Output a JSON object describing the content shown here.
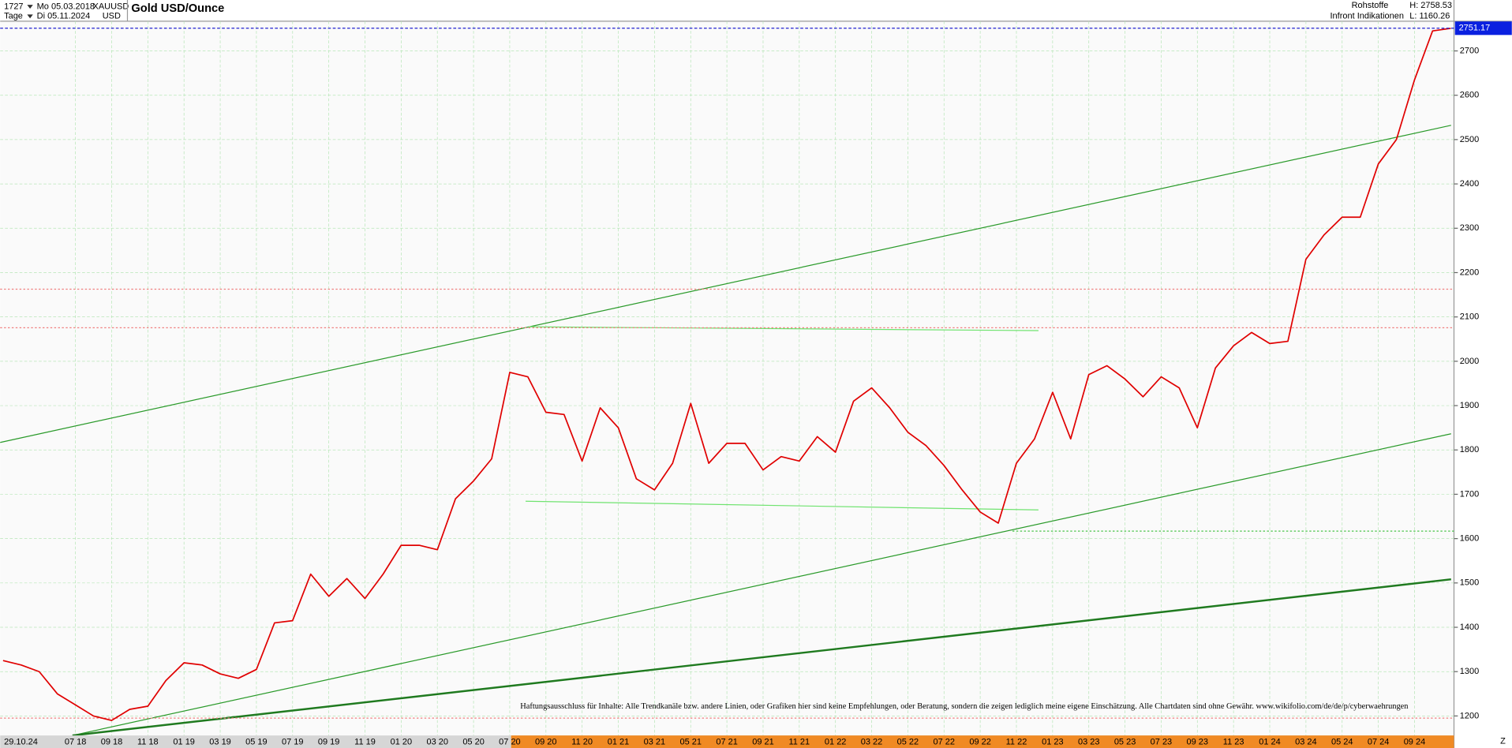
{
  "header": {
    "count": "1727",
    "start": "Mo 05.03.2018",
    "symbol": "XAUUSD",
    "currency": "USD",
    "period": "Tage",
    "end": "Di 05.11.2024",
    "group": "Rohstoffe",
    "high": "H: 2758.53",
    "source": "Infront Indikationen",
    "low": "L: 1160.26"
  },
  "chart_data": {
    "type": "line",
    "title": "Gold USD/Ounce",
    "color": "#e00000",
    "categories": [
      null,
      null,
      null,
      null,
      "07 18",
      null,
      "09 18",
      null,
      "11 18",
      null,
      "01 19",
      null,
      "03 19",
      null,
      "05 19",
      null,
      "07 19",
      null,
      "09 19",
      null,
      "11 19",
      null,
      "01 20",
      null,
      "03 20",
      null,
      "05 20",
      null,
      "07 20",
      null,
      "09 20",
      null,
      "11 20",
      null,
      "01 21",
      null,
      "03 21",
      null,
      "05 21",
      null,
      "07 21",
      null,
      "09 21",
      null,
      "11 21",
      null,
      "01 22",
      null,
      "03 22",
      null,
      "05 22",
      null,
      "07 22",
      null,
      "09 22",
      null,
      "11 22",
      null,
      "01 23",
      null,
      "03 23",
      null,
      "05 23",
      null,
      "07 23",
      null,
      "09 23",
      null,
      "11 23",
      null,
      "01 24",
      null,
      "03 24",
      null,
      "05 24",
      null,
      "07 24",
      null,
      "09 24",
      null,
      null
    ],
    "values": [
      1325,
      1315,
      1300,
      1250,
      1225,
      1200,
      1190,
      1215,
      1222,
      1280,
      1320,
      1315,
      1295,
      1285,
      1305,
      1410,
      1415,
      1520,
      1470,
      1510,
      1465,
      1520,
      1585,
      1585,
      1575,
      1690,
      1730,
      1780,
      1975,
      1965,
      1885,
      1880,
      1775,
      1895,
      1850,
      1735,
      1710,
      1770,
      1905,
      1770,
      1815,
      1815,
      1755,
      1785,
      1775,
      1830,
      1795,
      1910,
      1940,
      1895,
      1840,
      1810,
      1765,
      1710,
      1660,
      1635,
      1770,
      1825,
      1930,
      1825,
      1970,
      1990,
      1960,
      1920,
      1965,
      1940,
      1850,
      1985,
      2035,
      2065,
      2040,
      2045,
      2230,
      2285,
      2325,
      2325,
      2445,
      2500,
      2635,
      2745,
      2751
    ],
    "ylim": [
      1156,
      2767
    ],
    "yticks": [
      1200,
      1300,
      1400,
      1500,
      1600,
      1700,
      1800,
      1900,
      2000,
      2100,
      2200,
      2300,
      2400,
      2500,
      2600,
      2700
    ],
    "grid": true,
    "last_price": 2751.17,
    "first_date_label": "29.10.24",
    "end_marker": "Z",
    "disclaimer": "Haftungsausschluss für Inhalte: Alle Trendkanäle bzw. andere Linien, oder Grafiken hier sind keine Empfehlungen, oder Beratung, sondern die zeigen lediglich meine eigene Einschätzung. Alle Chartdaten sind ohne Gewähr.  www.wikifolio.com/de/de/p/cyberwaehrungen"
  }
}
